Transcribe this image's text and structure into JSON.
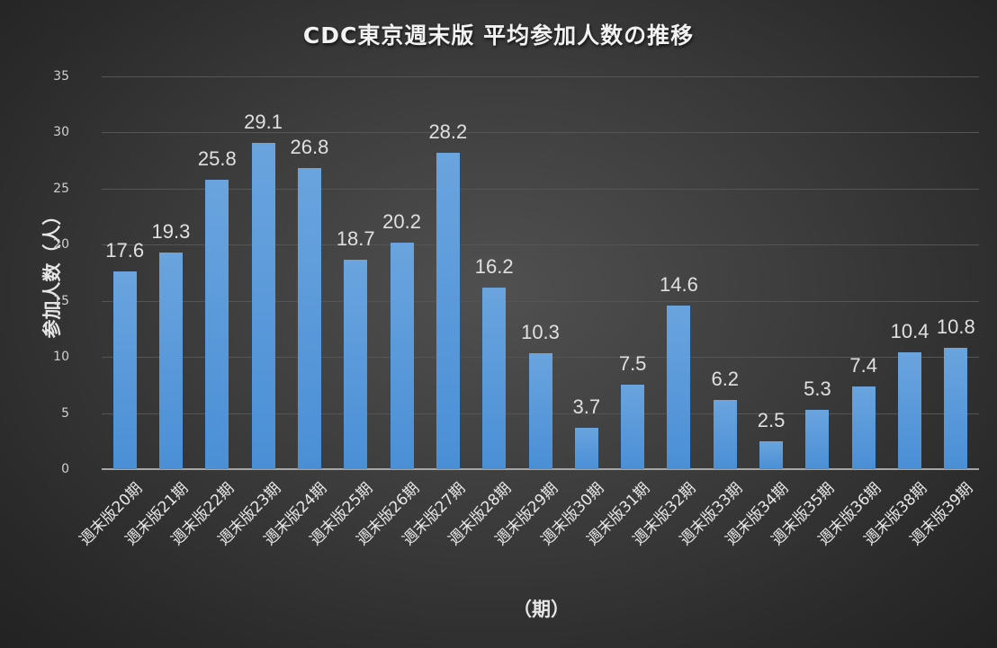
{
  "chart_data": {
    "type": "bar",
    "title": "CDC東京週末版 平均参加人数の推移",
    "xlabel": "（期）",
    "ylabel": "参加人数（人）",
    "ylim": [
      0,
      35
    ],
    "yticks": [
      "0",
      "5",
      "10",
      "15",
      "20",
      "25",
      "30",
      "35"
    ],
    "grid": true,
    "legend": null,
    "categories": [
      "週末版20期",
      "週末版21期",
      "週末版22期",
      "週末版23期",
      "週末版24期",
      "週末版25期",
      "週末版26期",
      "週末版27期",
      "週末版28期",
      "週末版29期",
      "週末版30期",
      "週末版31期",
      "週末版32期",
      "週末版33期",
      "週末版34期",
      "週末版35期",
      "週末版36期",
      "週末版38期",
      "週末版39期"
    ],
    "values": [
      17.6,
      19.3,
      25.8,
      29.1,
      26.8,
      18.7,
      20.2,
      28.2,
      16.2,
      10.3,
      3.7,
      7.5,
      14.6,
      6.2,
      2.5,
      5.3,
      7.4,
      10.4,
      10.8
    ],
    "labels": [
      "17.6",
      "19.3",
      "25.8",
      "29.1",
      "26.8",
      "18.7",
      "20.2",
      "28.2",
      "16.2",
      "10.3",
      "3.7",
      "7.5",
      "14.6",
      "6.2",
      "2.5",
      "5.3",
      "7.4",
      "10.4",
      "10.8"
    ],
    "colors": {
      "bar": "#5b9bd5",
      "background": "#3a3a3a",
      "text": "#e6e6e6"
    }
  }
}
